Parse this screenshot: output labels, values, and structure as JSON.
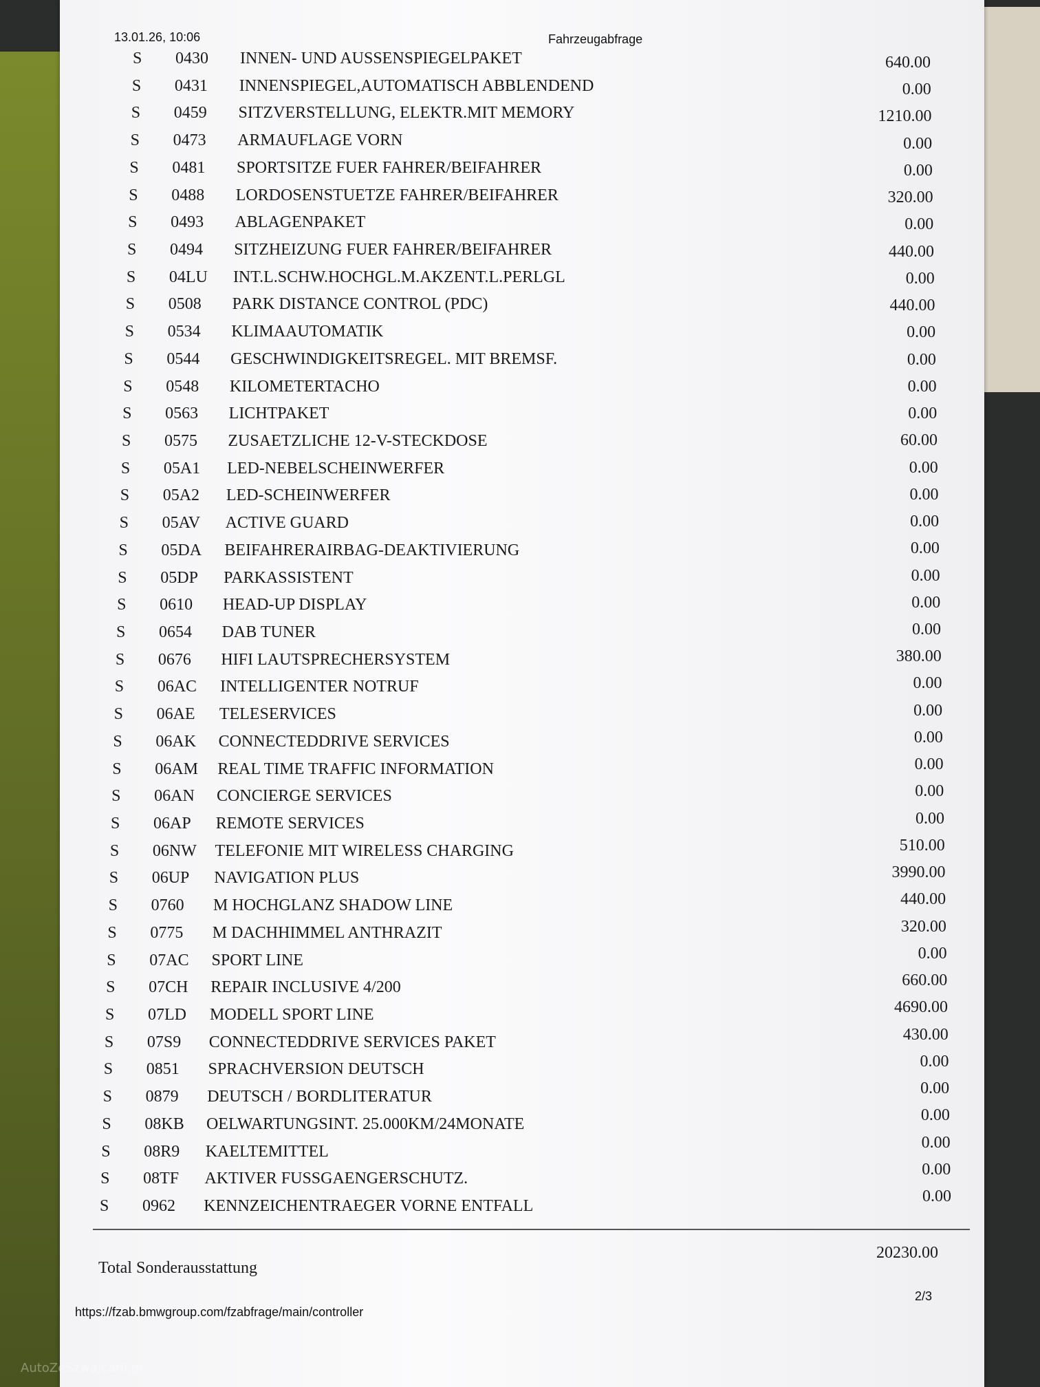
{
  "header": {
    "date": "13.01.26, 10:06",
    "title": "Fahrzeugabfrage"
  },
  "table": {
    "rows": [
      [
        "S",
        "0430",
        "INNEN- UND AUSSENSPIEGELPAKET",
        "640.00"
      ],
      [
        "S",
        "0431",
        "INNENSPIEGEL,AUTOMATISCH ABBLENDEND",
        "0.00"
      ],
      [
        "S",
        "0459",
        "SITZVERSTELLUNG, ELEKTR.MIT MEMORY",
        "1210.00"
      ],
      [
        "S",
        "0473",
        "ARMAUFLAGE VORN",
        "0.00"
      ],
      [
        "S",
        "0481",
        "SPORTSITZE FUER FAHRER/BEIFAHRER",
        "0.00"
      ],
      [
        "S",
        "0488",
        "LORDOSENSTUETZE FAHRER/BEIFAHRER",
        "320.00"
      ],
      [
        "S",
        "0493",
        "ABLAGENPAKET",
        "0.00"
      ],
      [
        "S",
        "0494",
        "SITZHEIZUNG FUER FAHRER/BEIFAHRER",
        "440.00"
      ],
      [
        "S",
        "04LU",
        "INT.L.SCHW.HOCHGL.M.AKZENT.L.PERLGL",
        "0.00"
      ],
      [
        "S",
        "0508",
        "PARK DISTANCE CONTROL (PDC)",
        "440.00"
      ],
      [
        "S",
        "0534",
        "KLIMAAUTOMATIK",
        "0.00"
      ],
      [
        "S",
        "0544",
        "GESCHWINDIGKEITSREGEL. MIT BREMSF.",
        "0.00"
      ],
      [
        "S",
        "0548",
        "KILOMETERTACHO",
        "0.00"
      ],
      [
        "S",
        "0563",
        "LICHTPAKET",
        "0.00"
      ],
      [
        "S",
        "0575",
        "ZUSAETZLICHE 12-V-STECKDOSE",
        "60.00"
      ],
      [
        "S",
        "05A1",
        "LED-NEBELSCHEINWERFER",
        "0.00"
      ],
      [
        "S",
        "05A2",
        "LED-SCHEINWERFER",
        "0.00"
      ],
      [
        "S",
        "05AV",
        "ACTIVE GUARD",
        "0.00"
      ],
      [
        "S",
        "05DA",
        "BEIFAHRERAIRBAG-DEAKTIVIERUNG",
        "0.00"
      ],
      [
        "S",
        "05DP",
        "PARKASSISTENT",
        "0.00"
      ],
      [
        "S",
        "0610",
        "HEAD-UP DISPLAY",
        "0.00"
      ],
      [
        "S",
        "0654",
        "DAB TUNER",
        "0.00"
      ],
      [
        "S",
        "0676",
        "HIFI LAUTSPRECHERSYSTEM",
        "380.00"
      ],
      [
        "S",
        "06AC",
        "INTELLIGENTER NOTRUF",
        "0.00"
      ],
      [
        "S",
        "06AE",
        "TELESERVICES",
        "0.00"
      ],
      [
        "S",
        "06AK",
        "CONNECTEDDRIVE SERVICES",
        "0.00"
      ],
      [
        "S",
        "06AM",
        "REAL TIME TRAFFIC INFORMATION",
        "0.00"
      ],
      [
        "S",
        "06AN",
        "CONCIERGE SERVICES",
        "0.00"
      ],
      [
        "S",
        "06AP",
        "REMOTE SERVICES",
        "0.00"
      ],
      [
        "S",
        "06NW",
        "TELEFONIE MIT WIRELESS CHARGING",
        "510.00"
      ],
      [
        "S",
        "06UP",
        "NAVIGATION PLUS",
        "3990.00"
      ],
      [
        "S",
        "0760",
        "M HOCHGLANZ SHADOW LINE",
        "440.00"
      ],
      [
        "S",
        "0775",
        "M DACHHIMMEL ANTHRAZIT",
        "320.00"
      ],
      [
        "S",
        "07AC",
        "SPORT LINE",
        "0.00"
      ],
      [
        "S",
        "07CH",
        "REPAIR INCLUSIVE 4/200",
        "660.00"
      ],
      [
        "S",
        "07LD",
        "MODELL SPORT LINE",
        "4690.00"
      ],
      [
        "S",
        "07S9",
        "CONNECTEDDRIVE SERVICES PAKET",
        "430.00"
      ],
      [
        "S",
        "0851",
        "SPRACHVERSION DEUTSCH",
        "0.00"
      ],
      [
        "S",
        "0879",
        "DEUTSCH / BORDLITERATUR",
        "0.00"
      ],
      [
        "S",
        "08KB",
        "OELWARTUNGSINT. 25.000KM/24MONATE",
        "0.00"
      ],
      [
        "S",
        "08R9",
        "KAELTEMITTEL",
        "0.00"
      ],
      [
        "S",
        "08TF",
        "AKTIVER FUSSGAENGERSCHUTZ.",
        "0.00"
      ],
      [
        "S",
        "0962",
        "KENNZEICHENTRAEGER VORNE ENTFALL",
        "0.00"
      ]
    ]
  },
  "total": {
    "label": "Total Sonderausstattung",
    "value": "20230.00"
  },
  "footer": {
    "url": "https://fzab.bmwgroup.com/fzabfrage/main/controller",
    "page": "2/3"
  },
  "watermark": "AutoZeSzwajcarii.pl"
}
